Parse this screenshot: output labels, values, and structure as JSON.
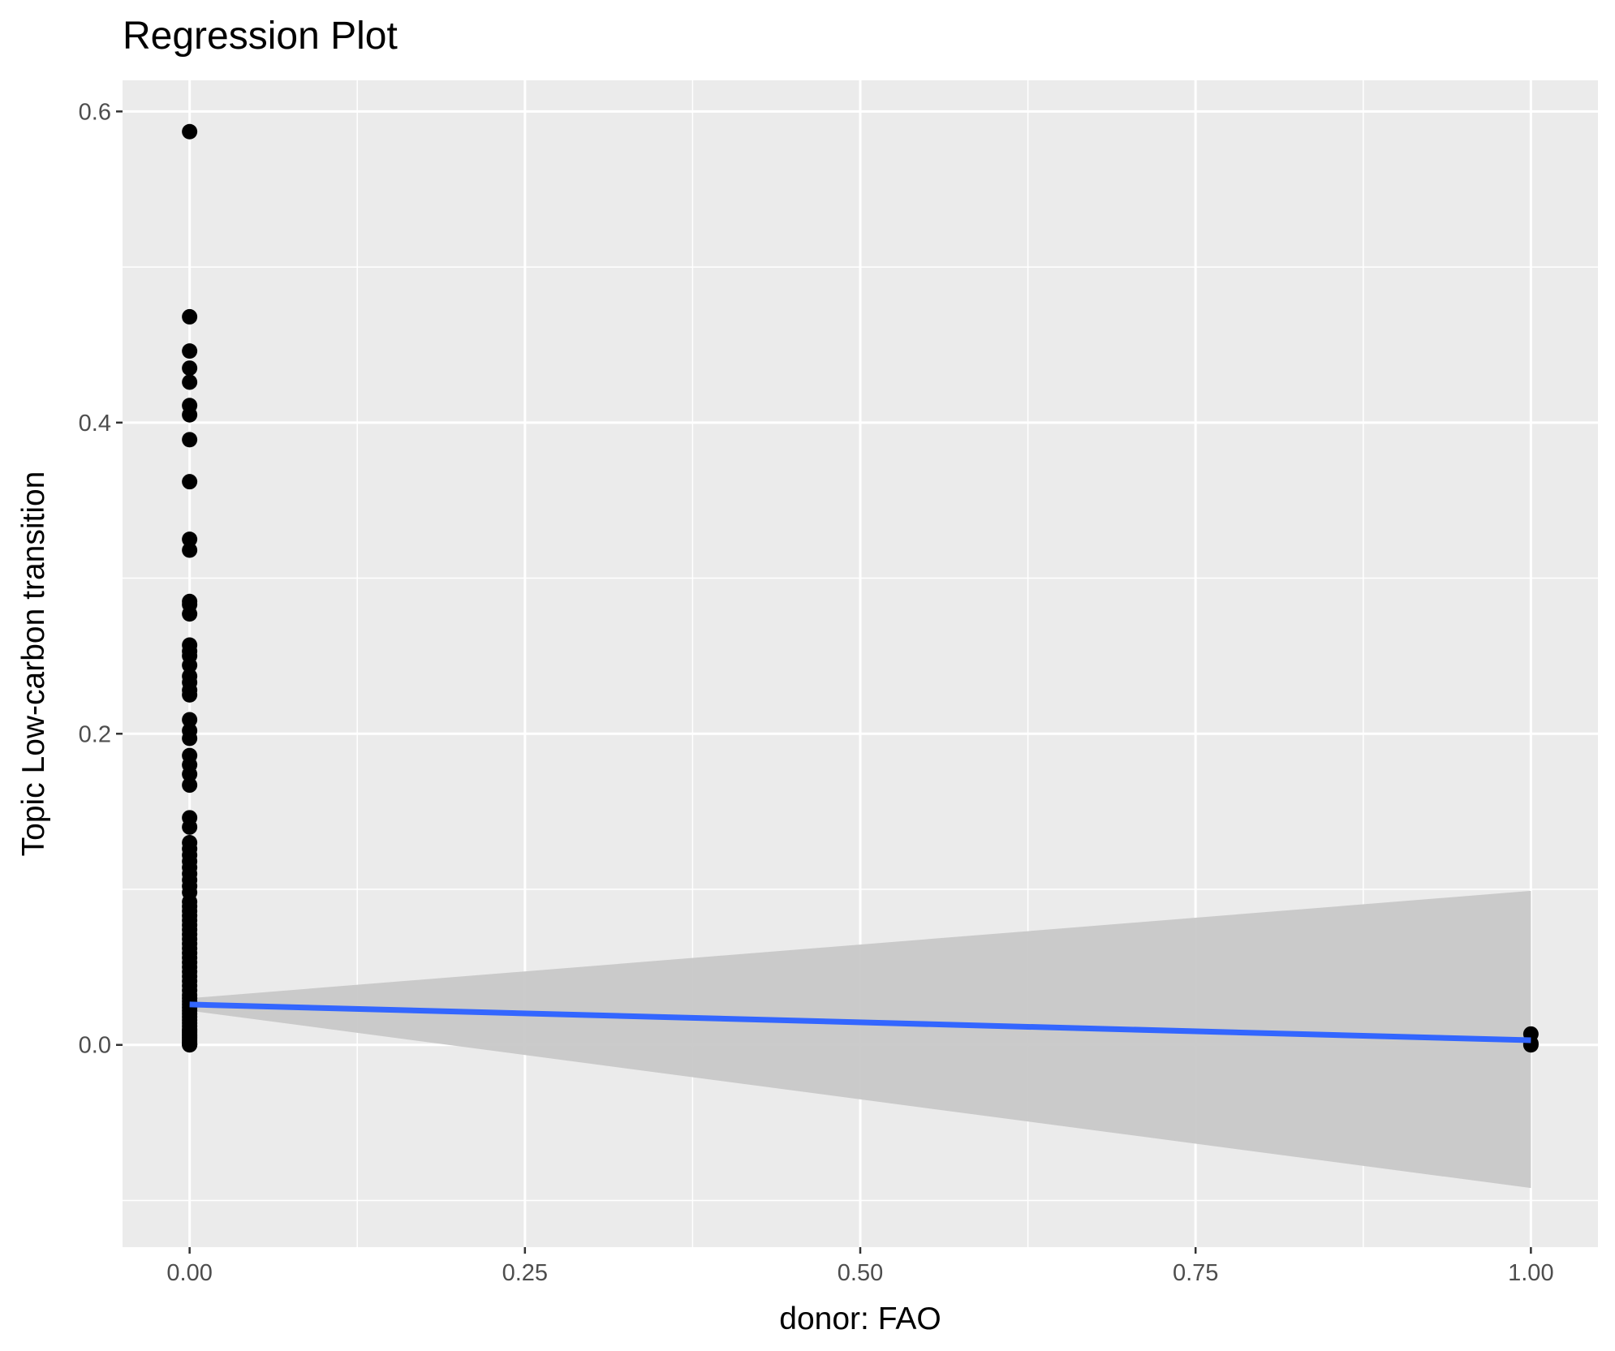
{
  "chart_data": {
    "type": "scatter",
    "title": "Regression Plot",
    "xlabel": "donor: FAO",
    "ylabel": "Topic Low-carbon transition",
    "xlim": [
      -0.05,
      1.05
    ],
    "ylim": [
      -0.13,
      0.62
    ],
    "x_ticks": [
      0.0,
      0.25,
      0.5,
      0.75,
      1.0
    ],
    "x_tick_labels": [
      "0.00",
      "0.25",
      "0.50",
      "0.75",
      "1.00"
    ],
    "y_ticks": [
      0.0,
      0.2,
      0.4,
      0.6
    ],
    "y_tick_labels": [
      "0.0",
      "0.2",
      "0.4",
      "0.6"
    ],
    "grid": true,
    "legend": "none",
    "colors": {
      "panel": "#ebebeb",
      "grid": "#ffffff",
      "points": "#000000",
      "fit_line": "#3366ff",
      "confidence_band": "#c8c8c8"
    },
    "series": [
      {
        "x": [
          0,
          0,
          0,
          0,
          0,
          0,
          0,
          0,
          0,
          0,
          0,
          0,
          0,
          0,
          0,
          0,
          0,
          0,
          0,
          0,
          0,
          0,
          0,
          0,
          0,
          0,
          0,
          0,
          0,
          0,
          0,
          0,
          0,
          0,
          0,
          0,
          0,
          0,
          0,
          0,
          0,
          0,
          0,
          0,
          0,
          0,
          0,
          0,
          0,
          0,
          0,
          0,
          0,
          0,
          0,
          0,
          0,
          0,
          0,
          0,
          0,
          0,
          0,
          0,
          0,
          0,
          0,
          0,
          0,
          0,
          0,
          0,
          0,
          0,
          0,
          0,
          0,
          0,
          0,
          0,
          0,
          0,
          0,
          0,
          1,
          1,
          1
        ],
        "y": [
          0.587,
          0.468,
          0.446,
          0.435,
          0.426,
          0.411,
          0.405,
          0.389,
          0.362,
          0.325,
          0.318,
          0.285,
          0.283,
          0.277,
          0.257,
          0.253,
          0.25,
          0.244,
          0.237,
          0.233,
          0.228,
          0.225,
          0.209,
          0.202,
          0.197,
          0.186,
          0.18,
          0.174,
          0.167,
          0.146,
          0.14,
          0.13,
          0.126,
          0.122,
          0.118,
          0.114,
          0.11,
          0.106,
          0.102,
          0.098,
          0.092,
          0.089,
          0.086,
          0.083,
          0.08,
          0.077,
          0.074,
          0.071,
          0.068,
          0.065,
          0.062,
          0.059,
          0.056,
          0.053,
          0.05,
          0.047,
          0.044,
          0.041,
          0.038,
          0.035,
          0.032,
          0.03,
          0.028,
          0.026,
          0.024,
          0.022,
          0.02,
          0.018,
          0.016,
          0.014,
          0.012,
          0.01,
          0.009,
          0.008,
          0.007,
          0.006,
          0.005,
          0.004,
          0.003,
          0.002,
          0.001,
          0.0005,
          0.0002,
          0.0,
          0.007,
          0.001,
          0.0
        ]
      }
    ],
    "regression": {
      "x": [
        0,
        1
      ],
      "fit": [
        0.026,
        0.003
      ],
      "ci_lower": [
        0.022,
        -0.092
      ],
      "ci_upper": [
        0.03,
        0.099
      ]
    }
  }
}
